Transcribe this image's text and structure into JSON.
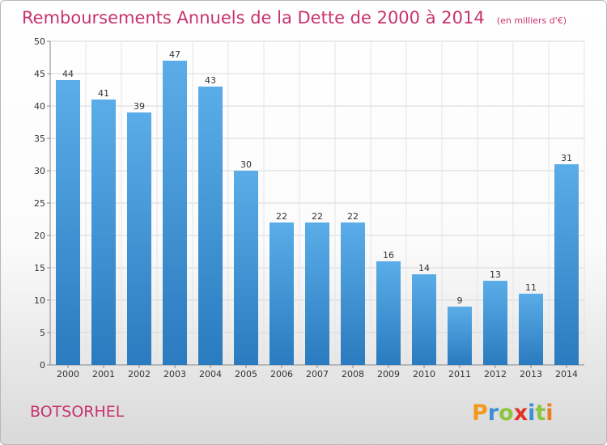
{
  "chart_data": {
    "type": "bar",
    "title": "Remboursements Annuels de la Dette de 2000 à 2014",
    "subtitle": "(en milliers d'€)",
    "xlabel": "",
    "ylabel": "",
    "categories": [
      "2000",
      "2001",
      "2002",
      "2003",
      "2004",
      "2005",
      "2006",
      "2007",
      "2008",
      "2009",
      "2010",
      "2011",
      "2012",
      "2013",
      "2014"
    ],
    "values": [
      44,
      41,
      39,
      47,
      43,
      30,
      22,
      22,
      22,
      16,
      14,
      9,
      13,
      11,
      31
    ],
    "ylim": [
      0,
      50
    ],
    "yticks": [
      0,
      5,
      10,
      15,
      20,
      25,
      30,
      35,
      40,
      45,
      50
    ],
    "grid": true,
    "bar_color_top": "#5aade8",
    "bar_color_bottom": "#2a7bbf"
  },
  "commune": "BOTSORHEL",
  "logo": {
    "letters": [
      "P",
      "r",
      "o",
      "x",
      "i",
      "t",
      "i"
    ],
    "colors": [
      "#f39a1e",
      "#3d8fd6",
      "#8cc63f",
      "#e2322b",
      "#3d8fd6",
      "#8cc63f",
      "#e77f24"
    ]
  }
}
